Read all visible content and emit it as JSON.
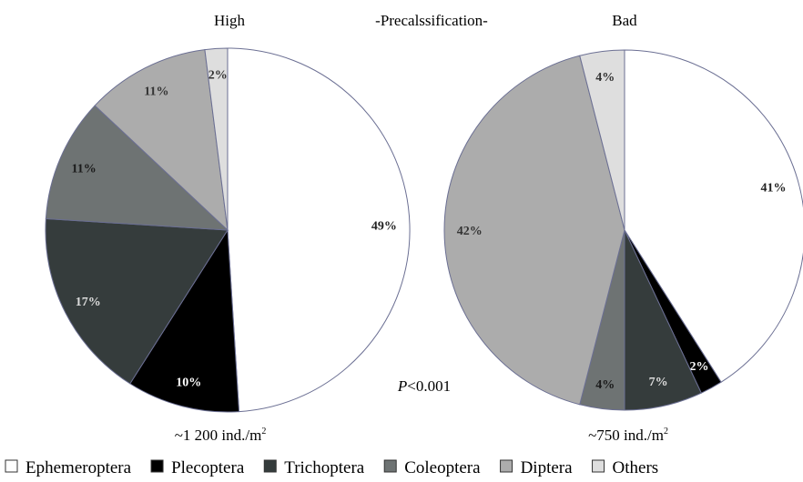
{
  "header": {
    "center_title": "-Precalssification-"
  },
  "annotation": {
    "p_prefix": "P",
    "p_suffix": "<0.001"
  },
  "legend": [
    {
      "label": "Ephemeroptera",
      "color": "#ffffff"
    },
    {
      "label": "Plecoptera",
      "color": "#000000"
    },
    {
      "label": "Trichoptera",
      "color": "#353c3c"
    },
    {
      "label": "Coleoptera",
      "color": "#6e7373"
    },
    {
      "label": "Diptera",
      "color": "#acacac"
    },
    {
      "label": "Others",
      "color": "#dedede"
    }
  ],
  "chart_data": [
    {
      "type": "pie",
      "title": "High",
      "total_label": "~1 200 ind./m",
      "total_label_sup": "2",
      "categories": [
        "Ephemeroptera",
        "Plecoptera",
        "Trichoptera",
        "Coleoptera",
        "Diptera",
        "Others"
      ],
      "values": [
        49,
        10,
        17,
        11,
        11,
        2
      ],
      "labels": [
        "49%",
        "10%",
        "17%",
        "11%",
        "11%",
        "2%"
      ]
    },
    {
      "type": "pie",
      "title": "Bad",
      "total_label": "~750 ind./m",
      "total_label_sup": "2",
      "categories": [
        "Ephemeroptera",
        "Plecoptera",
        "Trichoptera",
        "Coleoptera",
        "Diptera",
        "Others"
      ],
      "values": [
        41,
        2,
        7,
        4,
        42,
        4
      ],
      "labels": [
        "41%",
        "2%",
        "7%",
        "4%",
        "42%",
        "4%"
      ]
    }
  ]
}
